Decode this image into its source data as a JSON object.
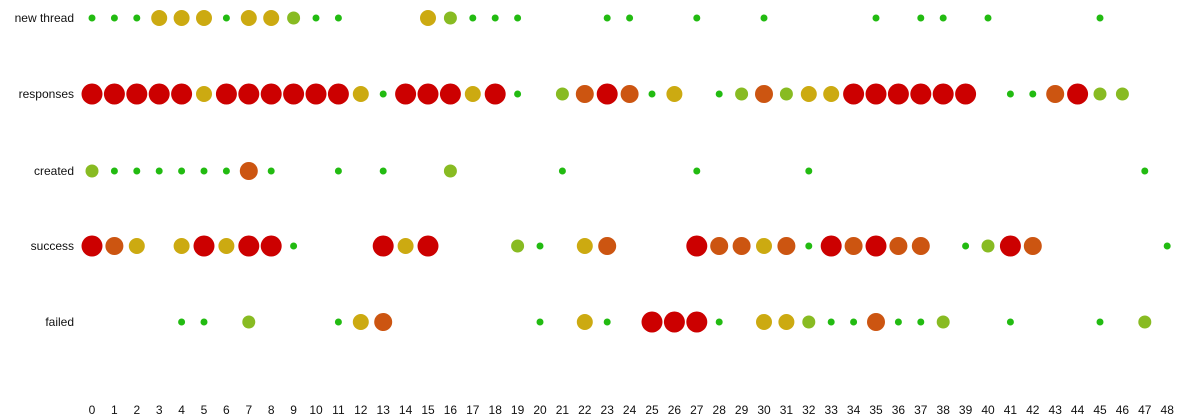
{
  "chart_data": {
    "type": "scatter",
    "title": "",
    "xlabel": "",
    "ylabel": "",
    "x_ticks": [
      "0",
      "1",
      "2",
      "3",
      "4",
      "5",
      "6",
      "7",
      "8",
      "9",
      "10",
      "11",
      "12",
      "13",
      "14",
      "15",
      "16",
      "17",
      "18",
      "19",
      "20",
      "21",
      "22",
      "23",
      "24",
      "25",
      "26",
      "27",
      "28",
      "29",
      "30",
      "31",
      "32",
      "33",
      "34",
      "35",
      "36",
      "37",
      "38",
      "39",
      "40",
      "41",
      "42",
      "43",
      "44",
      "45",
      "46",
      "47",
      "48"
    ],
    "xlim": [
      0,
      48
    ],
    "grid": false,
    "legend": "none",
    "size_levels": {
      "1": 3.5,
      "2": 6.5,
      "3": 8,
      "4": 9,
      "5": 10.5
    },
    "level_colors": {
      "1": "#22bb11",
      "2": "#88bb22",
      "3": "#ccaa11",
      "4": "#cc5511",
      "5": "#cc0000"
    },
    "series": [
      {
        "name": "new thread",
        "points": [
          [
            0,
            1
          ],
          [
            1,
            1
          ],
          [
            2,
            1
          ],
          [
            3,
            3
          ],
          [
            4,
            3
          ],
          [
            5,
            3
          ],
          [
            6,
            1
          ],
          [
            7,
            3
          ],
          [
            8,
            3
          ],
          [
            9,
            2
          ],
          [
            10,
            1
          ],
          [
            11,
            1
          ],
          [
            15,
            3
          ],
          [
            16,
            2
          ],
          [
            17,
            1
          ],
          [
            18,
            1
          ],
          [
            19,
            1
          ],
          [
            23,
            1
          ],
          [
            24,
            1
          ],
          [
            27,
            1
          ],
          [
            30,
            1
          ],
          [
            35,
            1
          ],
          [
            37,
            1
          ],
          [
            38,
            1
          ],
          [
            40,
            1
          ],
          [
            45,
            1
          ]
        ]
      },
      {
        "name": "responses",
        "points": [
          [
            0,
            5
          ],
          [
            1,
            5
          ],
          [
            2,
            5
          ],
          [
            3,
            5
          ],
          [
            4,
            5
          ],
          [
            5,
            3
          ],
          [
            6,
            5
          ],
          [
            7,
            5
          ],
          [
            8,
            5
          ],
          [
            9,
            5
          ],
          [
            10,
            5
          ],
          [
            11,
            5
          ],
          [
            12,
            3
          ],
          [
            13,
            1
          ],
          [
            14,
            5
          ],
          [
            15,
            5
          ],
          [
            16,
            5
          ],
          [
            17,
            3
          ],
          [
            18,
            5
          ],
          [
            19,
            1
          ],
          [
            21,
            2
          ],
          [
            22,
            4
          ],
          [
            23,
            5
          ],
          [
            24,
            4
          ],
          [
            25,
            1
          ],
          [
            26,
            3
          ],
          [
            28,
            1
          ],
          [
            29,
            2
          ],
          [
            30,
            4
          ],
          [
            31,
            2
          ],
          [
            32,
            3
          ],
          [
            33,
            3
          ],
          [
            34,
            5
          ],
          [
            35,
            5
          ],
          [
            36,
            5
          ],
          [
            37,
            5
          ],
          [
            38,
            5
          ],
          [
            39,
            5
          ],
          [
            41,
            1
          ],
          [
            42,
            1
          ],
          [
            43,
            4
          ],
          [
            44,
            5
          ],
          [
            45,
            2
          ],
          [
            46,
            2
          ]
        ]
      },
      {
        "name": "created",
        "points": [
          [
            0,
            2
          ],
          [
            1,
            1
          ],
          [
            2,
            1
          ],
          [
            3,
            1
          ],
          [
            4,
            1
          ],
          [
            5,
            1
          ],
          [
            6,
            1
          ],
          [
            7,
            4
          ],
          [
            8,
            1
          ],
          [
            11,
            1
          ],
          [
            13,
            1
          ],
          [
            16,
            2
          ],
          [
            21,
            1
          ],
          [
            27,
            1
          ],
          [
            32,
            1
          ],
          [
            47,
            1
          ]
        ]
      },
      {
        "name": "success",
        "points": [
          [
            0,
            5
          ],
          [
            1,
            4
          ],
          [
            2,
            3
          ],
          [
            4,
            3
          ],
          [
            5,
            5
          ],
          [
            6,
            3
          ],
          [
            7,
            5
          ],
          [
            8,
            5
          ],
          [
            9,
            1
          ],
          [
            13,
            5
          ],
          [
            14,
            3
          ],
          [
            15,
            5
          ],
          [
            19,
            2
          ],
          [
            20,
            1
          ],
          [
            22,
            3
          ],
          [
            23,
            4
          ],
          [
            27,
            5
          ],
          [
            28,
            4
          ],
          [
            29,
            4
          ],
          [
            30,
            3
          ],
          [
            31,
            4
          ],
          [
            32,
            1
          ],
          [
            33,
            5
          ],
          [
            34,
            4
          ],
          [
            35,
            5
          ],
          [
            36,
            4
          ],
          [
            37,
            4
          ],
          [
            39,
            1
          ],
          [
            40,
            2
          ],
          [
            41,
            5
          ],
          [
            42,
            4
          ],
          [
            48,
            1
          ]
        ]
      },
      {
        "name": "failed",
        "points": [
          [
            4,
            1
          ],
          [
            5,
            1
          ],
          [
            7,
            2
          ],
          [
            11,
            1
          ],
          [
            12,
            3
          ],
          [
            13,
            4
          ],
          [
            20,
            1
          ],
          [
            22,
            3
          ],
          [
            23,
            1
          ],
          [
            25,
            5
          ],
          [
            26,
            5
          ],
          [
            27,
            5
          ],
          [
            28,
            1
          ],
          [
            30,
            3
          ],
          [
            31,
            3
          ],
          [
            32,
            2
          ],
          [
            33,
            1
          ],
          [
            34,
            1
          ],
          [
            35,
            4
          ],
          [
            36,
            1
          ],
          [
            37,
            1
          ],
          [
            38,
            2
          ],
          [
            41,
            1
          ],
          [
            45,
            1
          ],
          [
            47,
            2
          ]
        ]
      }
    ]
  }
}
